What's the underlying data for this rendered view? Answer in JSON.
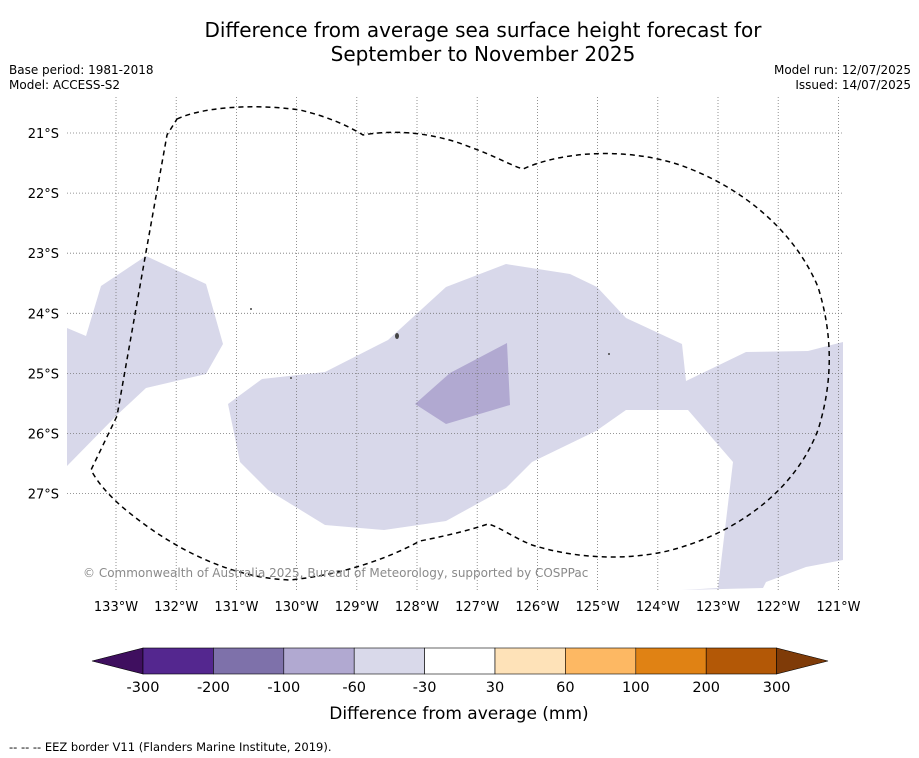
{
  "title_line1": "Difference from average sea surface height forecast for",
  "title_line2": "September to November 2025",
  "base_period": "Base period: 1981-2018",
  "model": "Model: ACCESS-S2",
  "model_run": "Model run: 12/07/2025",
  "issued": "Issued: 14/07/2025",
  "copyright": "© Commonwealth of Australia 2025, Bureau of Meteorology, supported by COSPPac",
  "footer": "--  --  -- EEZ border V11 (Flanders Marine Institute, 2019).",
  "map": {
    "lat_labels": [
      "21°S",
      "22°S",
      "23°S",
      "24°S",
      "25°S",
      "26°S",
      "27°S"
    ],
    "lon_labels": [
      "133°W",
      "132°W",
      "131°W",
      "130°W",
      "129°W",
      "128°W",
      "127°W",
      "126°W",
      "125°W",
      "124°W",
      "123°W",
      "122°W",
      "121°W"
    ],
    "lon_range": [
      -133.8,
      -120.9
    ],
    "lat_range": [
      -28.6,
      -20.4
    ]
  },
  "colorbar": {
    "title": "Difference from average (mm)",
    "tick_labels": [
      "-300",
      "-200",
      "-100",
      "-60",
      "-30",
      "30",
      "60",
      "100",
      "200",
      "300"
    ],
    "colors": [
      "#3f0f5f",
      "#54278f",
      "#7e71aa",
      "#b1a9d1",
      "#d9d9ea",
      "#ffffff",
      "#fee2b8",
      "#fdb863",
      "#e08214",
      "#b35806",
      "#7f3b08"
    ]
  }
}
